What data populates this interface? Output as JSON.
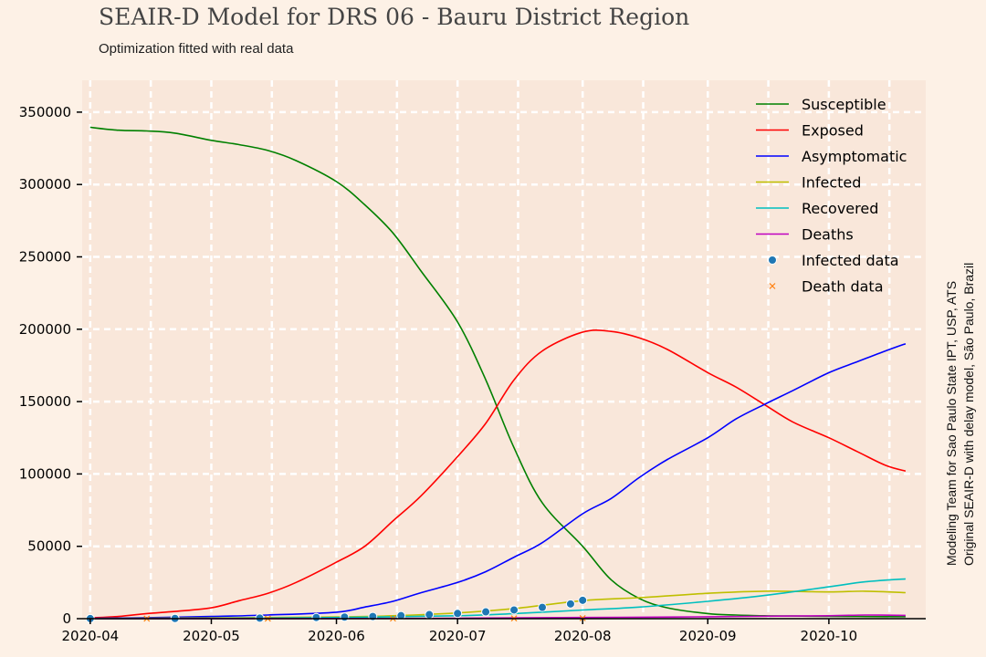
{
  "header": {
    "title": "SEAIR-D Model for DRS 06 - Bauru District Region",
    "subtitle": "Optimization fitted with real data"
  },
  "credits": {
    "line1": "Modeling Team for Sao Paulo State IPT, USP, ATS",
    "line2": "Original SEAIR-D with delay model, São Paulo, Brazil"
  },
  "chart_data": {
    "type": "line",
    "title": "SEAIR-D Model for DRS 06 - Bauru District Region",
    "subtitle": "Optimization fitted with real data",
    "xlabel": "",
    "ylabel": "",
    "x_range": [
      "2020-03-30",
      "2020-10-25"
    ],
    "ylim": [
      0,
      372000
    ],
    "grid": true,
    "legend_position": "top-right",
    "x_ticks": [
      {
        "date": "2020-04-01",
        "label": "2020-04"
      },
      {
        "date": "2020-05-01",
        "label": "2020-05"
      },
      {
        "date": "2020-06-01",
        "label": "2020-06"
      },
      {
        "date": "2020-07-01",
        "label": "2020-07"
      },
      {
        "date": "2020-08-01",
        "label": "2020-08"
      },
      {
        "date": "2020-09-01",
        "label": "2020-09"
      },
      {
        "date": "2020-10-01",
        "label": "2020-10"
      }
    ],
    "y_ticks": [
      {
        "value": 0,
        "label": "0"
      },
      {
        "value": 50000,
        "label": "50000"
      },
      {
        "value": 100000,
        "label": "100000"
      },
      {
        "value": 150000,
        "label": "150000"
      },
      {
        "value": 200000,
        "label": "200000"
      },
      {
        "value": 250000,
        "label": "250000"
      },
      {
        "value": 300000,
        "label": "300000"
      },
      {
        "value": 350000,
        "label": "350000"
      }
    ],
    "series": [
      {
        "name": "Susceptible",
        "color": "#008000",
        "kind": "line",
        "points": [
          [
            "2020-04-01",
            339500
          ],
          [
            "2020-04-08",
            337500
          ],
          [
            "2020-04-15",
            337000
          ],
          [
            "2020-04-22",
            335500
          ],
          [
            "2020-05-01",
            330500
          ],
          [
            "2020-05-08",
            327500
          ],
          [
            "2020-05-15",
            323500
          ],
          [
            "2020-05-22",
            316500
          ],
          [
            "2020-06-01",
            302000
          ],
          [
            "2020-06-08",
            286000
          ],
          [
            "2020-06-15",
            266500
          ],
          [
            "2020-06-22",
            240000
          ],
          [
            "2020-07-01",
            205000
          ],
          [
            "2020-07-08",
            165000
          ],
          [
            "2020-07-15",
            118000
          ],
          [
            "2020-07-22",
            80000
          ],
          [
            "2020-08-01",
            50000
          ],
          [
            "2020-08-08",
            27000
          ],
          [
            "2020-08-15",
            14000
          ],
          [
            "2020-08-22",
            7500
          ],
          [
            "2020-09-01",
            3500
          ],
          [
            "2020-09-08",
            2500
          ],
          [
            "2020-09-15",
            2000
          ],
          [
            "2020-09-22",
            1800
          ],
          [
            "2020-10-01",
            1600
          ],
          [
            "2020-10-08",
            1500
          ],
          [
            "2020-10-15",
            1400
          ],
          [
            "2020-10-20",
            1400
          ]
        ]
      },
      {
        "name": "Exposed",
        "color": "#ff0000",
        "kind": "line",
        "points": [
          [
            "2020-04-01",
            500
          ],
          [
            "2020-04-08",
            1500
          ],
          [
            "2020-04-15",
            3500
          ],
          [
            "2020-04-22",
            5000
          ],
          [
            "2020-05-01",
            7500
          ],
          [
            "2020-05-08",
            12500
          ],
          [
            "2020-05-15",
            17500
          ],
          [
            "2020-05-22",
            25000
          ],
          [
            "2020-06-01",
            39000
          ],
          [
            "2020-06-08",
            50000
          ],
          [
            "2020-06-15",
            67500
          ],
          [
            "2020-06-22",
            85000
          ],
          [
            "2020-07-01",
            112000
          ],
          [
            "2020-07-08",
            135000
          ],
          [
            "2020-07-15",
            165000
          ],
          [
            "2020-07-22",
            185000
          ],
          [
            "2020-08-01",
            198000
          ],
          [
            "2020-08-08",
            198500
          ],
          [
            "2020-08-15",
            194000
          ],
          [
            "2020-08-22",
            186000
          ],
          [
            "2020-09-01",
            170000
          ],
          [
            "2020-09-08",
            160000
          ],
          [
            "2020-09-15",
            148000
          ],
          [
            "2020-09-22",
            136000
          ],
          [
            "2020-10-01",
            125000
          ],
          [
            "2020-10-08",
            115500
          ],
          [
            "2020-10-15",
            106000
          ],
          [
            "2020-10-20",
            102000
          ]
        ]
      },
      {
        "name": "Asymptomatic",
        "color": "#0000ff",
        "kind": "line",
        "points": [
          [
            "2020-04-01",
            200
          ],
          [
            "2020-04-15",
            700
          ],
          [
            "2020-05-01",
            1500
          ],
          [
            "2020-05-15",
            2500
          ],
          [
            "2020-06-01",
            4500
          ],
          [
            "2020-06-08",
            8000
          ],
          [
            "2020-06-15",
            12000
          ],
          [
            "2020-06-22",
            18000
          ],
          [
            "2020-07-01",
            25000
          ],
          [
            "2020-07-08",
            32500
          ],
          [
            "2020-07-15",
            42500
          ],
          [
            "2020-07-22",
            52500
          ],
          [
            "2020-08-01",
            72500
          ],
          [
            "2020-08-08",
            83000
          ],
          [
            "2020-08-15",
            97500
          ],
          [
            "2020-08-22",
            110000
          ],
          [
            "2020-09-01",
            125000
          ],
          [
            "2020-09-08",
            138000
          ],
          [
            "2020-09-15",
            148000
          ],
          [
            "2020-09-22",
            157500
          ],
          [
            "2020-10-01",
            170000
          ],
          [
            "2020-10-08",
            177500
          ],
          [
            "2020-10-15",
            185000
          ],
          [
            "2020-10-20",
            190000
          ]
        ]
      },
      {
        "name": "Infected",
        "color": "#bfbf00",
        "kind": "line",
        "points": [
          [
            "2020-04-01",
            100
          ],
          [
            "2020-05-01",
            500
          ],
          [
            "2020-06-01",
            1200
          ],
          [
            "2020-06-15",
            2000
          ],
          [
            "2020-07-01",
            4000
          ],
          [
            "2020-07-15",
            7000
          ],
          [
            "2020-08-01",
            12500
          ],
          [
            "2020-08-15",
            14500
          ],
          [
            "2020-09-01",
            17500
          ],
          [
            "2020-09-15",
            19000
          ],
          [
            "2020-10-01",
            18500
          ],
          [
            "2020-10-10",
            19000
          ],
          [
            "2020-10-20",
            18000
          ]
        ]
      },
      {
        "name": "Recovered",
        "color": "#00bfbf",
        "kind": "line",
        "points": [
          [
            "2020-04-01",
            0
          ],
          [
            "2020-05-01",
            200
          ],
          [
            "2020-06-01",
            800
          ],
          [
            "2020-07-01",
            2000
          ],
          [
            "2020-07-15",
            3500
          ],
          [
            "2020-08-01",
            6000
          ],
          [
            "2020-08-15",
            8000
          ],
          [
            "2020-09-01",
            12000
          ],
          [
            "2020-09-15",
            16000
          ],
          [
            "2020-10-01",
            22000
          ],
          [
            "2020-10-10",
            25500
          ],
          [
            "2020-10-20",
            27500
          ]
        ]
      },
      {
        "name": "Deaths",
        "color": "#bf00bf",
        "kind": "line",
        "points": [
          [
            "2020-04-01",
            0
          ],
          [
            "2020-06-01",
            50
          ],
          [
            "2020-07-01",
            300
          ],
          [
            "2020-08-01",
            800
          ],
          [
            "2020-08-15",
            1000
          ],
          [
            "2020-09-01",
            1300
          ],
          [
            "2020-09-15",
            1700
          ],
          [
            "2020-10-01",
            2000
          ],
          [
            "2020-10-10",
            2500
          ],
          [
            "2020-10-20",
            2300
          ]
        ]
      },
      {
        "name": "Infected data",
        "color": "#1f77b4",
        "kind": "markers",
        "points": [
          [
            "2020-04-01",
            50
          ],
          [
            "2020-04-22",
            150
          ],
          [
            "2020-05-13",
            400
          ],
          [
            "2020-05-27",
            800
          ],
          [
            "2020-06-03",
            1100
          ],
          [
            "2020-06-10",
            1500
          ],
          [
            "2020-06-17",
            2100
          ],
          [
            "2020-06-24",
            2800
          ],
          [
            "2020-07-01",
            3600
          ],
          [
            "2020-07-08",
            4700
          ],
          [
            "2020-07-15",
            6000
          ],
          [
            "2020-07-22",
            7800
          ],
          [
            "2020-07-29",
            10200
          ],
          [
            "2020-08-01",
            12700
          ]
        ]
      },
      {
        "name": "Death data",
        "color": "#ff7f0e",
        "kind": "markers",
        "points": [
          [
            "2020-04-15",
            10
          ],
          [
            "2020-05-15",
            30
          ],
          [
            "2020-06-15",
            80
          ],
          [
            "2020-07-15",
            200
          ],
          [
            "2020-08-01",
            330
          ]
        ]
      }
    ]
  }
}
